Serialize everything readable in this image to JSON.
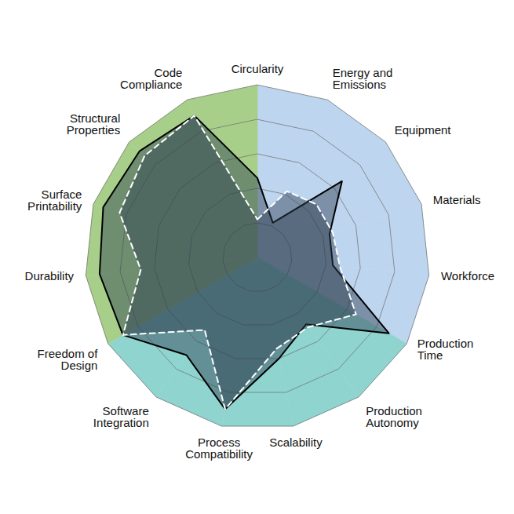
{
  "chart_data": {
    "type": "radar",
    "categories": [
      "Circularity",
      "Energy and Emissions",
      "Equipment",
      "Materials",
      "Workforce",
      "Production Time",
      "Production Autonomy",
      "Scalability",
      "Process Compatibility",
      "Software Integration",
      "Freedom of Design",
      "Durability",
      "Surface Printability",
      "Structural Properties",
      "Code Compliance"
    ],
    "colors": [
      "#bdd5ee",
      "#bdd5ee",
      "#bdd5ee",
      "#bdd5ee",
      "#bdd5ee",
      "#8fd4cf",
      "#8fd4cf",
      "#8fd4cf",
      "#8fd4cf",
      "#8fd4cf",
      "#a7cf8a",
      "#a7cf8a",
      "#a7cf8a",
      "#a7cf8a",
      "#a7cf8a"
    ],
    "series": [
      {
        "color": "#000000",
        "line_style": "solid",
        "values": [
          2.3,
          1.1,
          3.3,
          2.2,
          2.2,
          4.4,
          2.4,
          3.0,
          4.5,
          3.5,
          4.5,
          4.6,
          4.7,
          4.6,
          4.5
        ]
      },
      {
        "color": "#ffffff",
        "line_style": "dashed",
        "values": [
          1.1,
          2.1,
          2.3,
          2.3,
          2.4,
          3.3,
          2.5,
          2.7,
          4.5,
          2.6,
          4.5,
          3.4,
          4.2,
          4.4,
          4.5
        ]
      }
    ],
    "ylim": [
      0,
      5
    ],
    "yticks": [
      1,
      2,
      3,
      4,
      5
    ],
    "grid": true,
    "tick_labels": false
  }
}
